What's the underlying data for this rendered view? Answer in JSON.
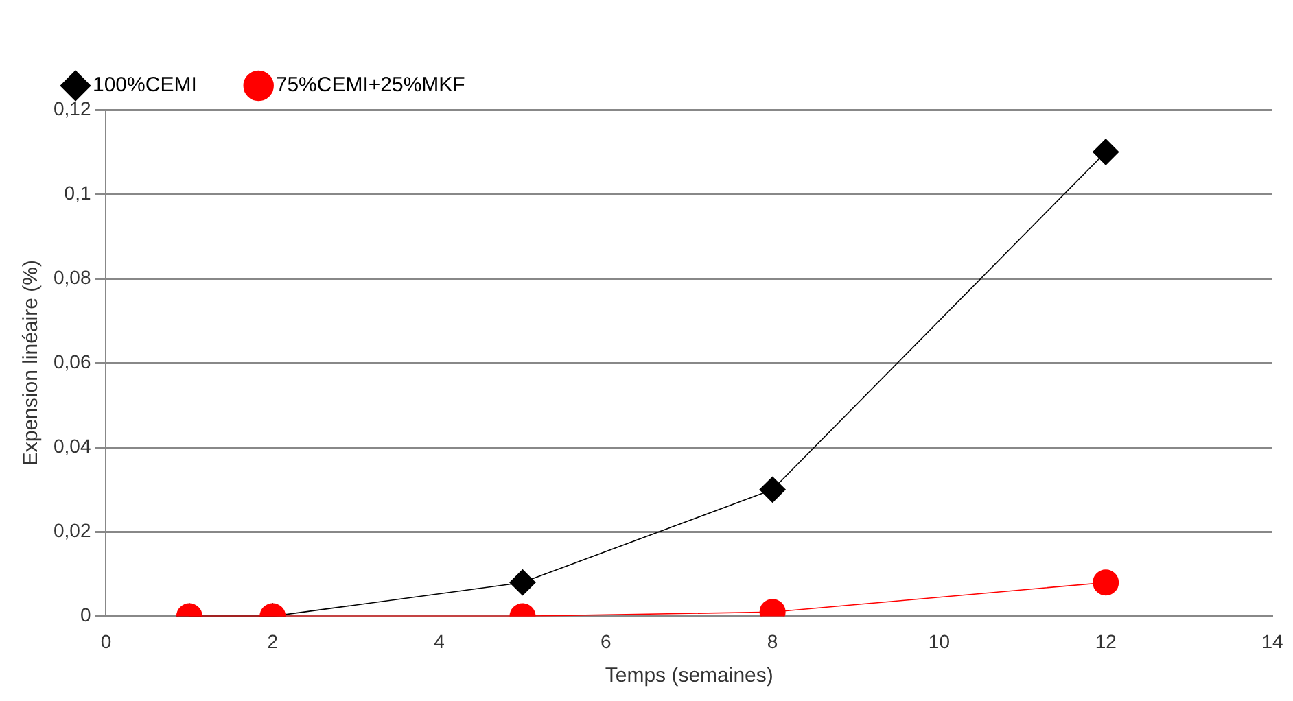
{
  "chart_data": {
    "type": "line",
    "xlabel": "Temps (semaines)",
    "ylabel": "Expension linéaire (%)",
    "xlim": [
      0,
      14
    ],
    "xticks": [
      0,
      2,
      4,
      6,
      8,
      10,
      12,
      14
    ],
    "ylim": [
      0,
      0.12
    ],
    "yticks": [
      0,
      {
        "value": 0.02,
        "label": "0,02"
      },
      {
        "value": 0.04,
        "label": "0,04"
      },
      {
        "value": 0.06,
        "label": "0,06"
      },
      {
        "value": 0.08,
        "label": "0,08"
      },
      {
        "value": 0.1,
        "label": "0,1"
      },
      {
        "value": 0.12,
        "label": "0,12"
      }
    ],
    "grid": "y",
    "legend": "top left",
    "series": [
      {
        "name": "100%CEMI",
        "color": "#000000",
        "marker": "diamond",
        "x": [
          1,
          2,
          5,
          8,
          12
        ],
        "values": [
          0,
          0,
          0.008,
          0.03,
          0.11
        ]
      },
      {
        "name": "75%CEMI+25%MKF",
        "color": "#ff0000",
        "marker": "circle",
        "x": [
          1,
          2,
          5,
          8,
          12
        ],
        "values": [
          0,
          0,
          0,
          0.001,
          0.008
        ]
      }
    ]
  }
}
